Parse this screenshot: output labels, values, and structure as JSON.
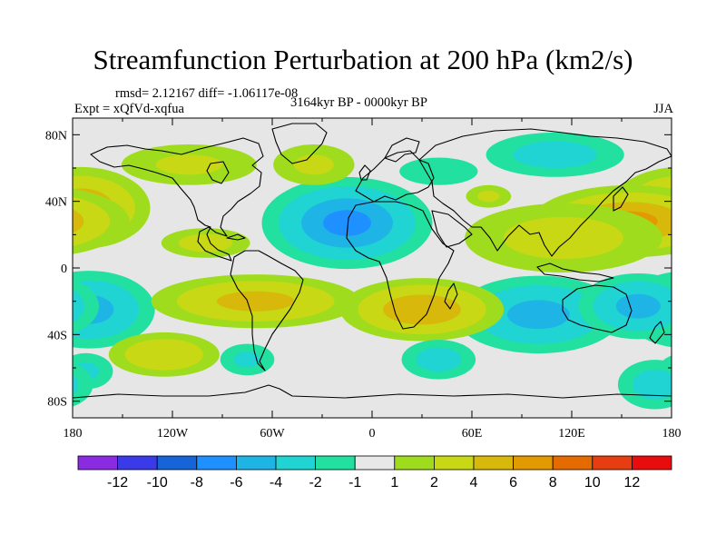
{
  "title": "Streamfunction Perturbation at 200 hPa (km2/s)",
  "rmsd_line": "rmsd= 2.12167 diff= -1.06117e-08",
  "expt_line": "Expt = xQfVd-xqfua",
  "period": "3164kyr BP - 0000kyr BP",
  "season": "JJA",
  "colors": {
    "background_fill": "#e6e6e6",
    "coast": "#000000",
    "levels": [
      "#8a2be2",
      "#3a3ae8",
      "#1565d8",
      "#1e90ff",
      "#1eb4e6",
      "#20d4d4",
      "#22e0a0",
      "#e8e8e8",
      "#9fdc1e",
      "#c8d814",
      "#d9b80c",
      "#e29a00",
      "#e56a00",
      "#e63e10",
      "#e80c0c"
    ]
  },
  "x_ticks": [
    "180",
    "120W",
    "60W",
    "0",
    "60E",
    "120E",
    "180"
  ],
  "y_ticks": [
    "80N",
    "40N",
    "0",
    "40S",
    "80S"
  ],
  "colorbar_labels": [
    "-12",
    "-10",
    "-8",
    "-6",
    "-4",
    "-2",
    "-1",
    "1",
    "2",
    "4",
    "6",
    "8",
    "10",
    "12"
  ],
  "chart_data": {
    "type": "heatmap",
    "title": "Streamfunction Perturbation at 200 hPa (km2/s)",
    "projection": "cylindrical-equidistant",
    "xlim": [
      -180,
      180
    ],
    "ylim": [
      -90,
      90
    ],
    "levels": [
      -12,
      -10,
      -8,
      -6,
      -4,
      -2,
      -1,
      1,
      2,
      4,
      6,
      8,
      10,
      12
    ],
    "anomalies": [
      {
        "lon": -175,
        "lat": 36,
        "value": 6,
        "sx": 22,
        "sy": 13
      },
      {
        "lon": -100,
        "lat": 15,
        "value": 3,
        "sx": 18,
        "sy": 6
      },
      {
        "lon": -15,
        "lat": 27,
        "value": -7,
        "sx": 26,
        "sy": 14
      },
      {
        "lon": -170,
        "lat": -25,
        "value": -5,
        "sx": 22,
        "sy": 13
      },
      {
        "lon": 100,
        "lat": -28,
        "value": -5,
        "sx": 28,
        "sy": 13
      },
      {
        "lon": 160,
        "lat": -23,
        "value": -5,
        "sx": 20,
        "sy": 11
      },
      {
        "lon": 155,
        "lat": 28,
        "value": 7,
        "sx": 30,
        "sy": 11
      },
      {
        "lon": 115,
        "lat": 18,
        "value": 3,
        "sx": 40,
        "sy": 14
      },
      {
        "lon": -70,
        "lat": -20,
        "value": 5,
        "sx": 35,
        "sy": 9
      },
      {
        "lon": 30,
        "lat": -25,
        "value": 6,
        "sx": 26,
        "sy": 10
      },
      {
        "lon": -110,
        "lat": 62,
        "value": 2.5,
        "sx": 30,
        "sy": 9
      },
      {
        "lon": -35,
        "lat": 62,
        "value": 2.5,
        "sx": 18,
        "sy": 9
      },
      {
        "lon": 40,
        "lat": 58,
        "value": -2,
        "sx": 20,
        "sy": 7
      },
      {
        "lon": 110,
        "lat": 68,
        "value": -3,
        "sx": 28,
        "sy": 9
      },
      {
        "lon": -125,
        "lat": -52,
        "value": 4,
        "sx": 20,
        "sy": 8
      },
      {
        "lon": -75,
        "lat": -55,
        "value": -2.5,
        "sx": 12,
        "sy": 7
      },
      {
        "lon": 40,
        "lat": -55,
        "value": -3,
        "sx": 15,
        "sy": 8
      },
      {
        "lon": -172,
        "lat": -62,
        "value": -2.5,
        "sx": 12,
        "sy": 8
      },
      {
        "lon": 170,
        "lat": -70,
        "value": -3,
        "sx": 15,
        "sy": 10
      },
      {
        "lon": 70,
        "lat": 43,
        "value": 2.5,
        "sx": 10,
        "sy": 5
      }
    ]
  }
}
